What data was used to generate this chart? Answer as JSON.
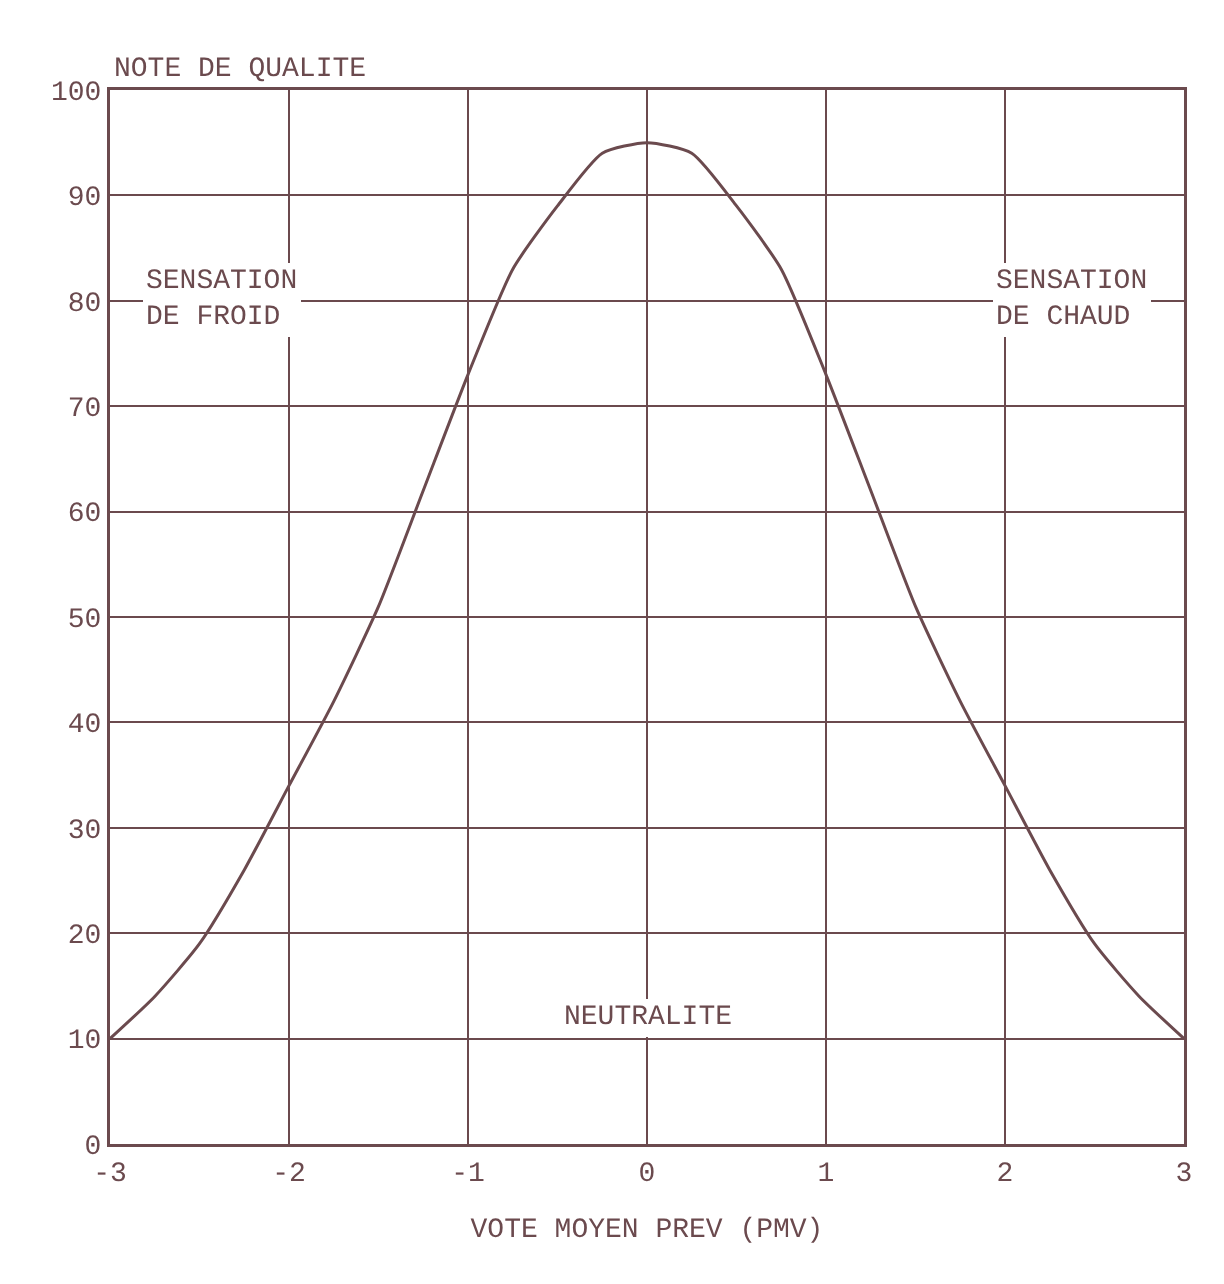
{
  "chart_data": {
    "type": "line",
    "ylabel": "NOTE DE QUALITE",
    "xlabel": "VOTE MOYEN PREV (PMV)",
    "x": [
      -3,
      -2.75,
      -2.5,
      -2.25,
      -2,
      -1.75,
      -1.5,
      -1.25,
      -1,
      -0.75,
      -0.5,
      -0.25,
      0,
      0.25,
      0.5,
      0.75,
      1,
      1.25,
      1.5,
      1.75,
      2,
      2.25,
      2.5,
      2.75,
      3
    ],
    "series": [
      {
        "color": "#6b4a4e",
        "values": [
          10,
          14,
          19,
          26,
          34,
          42,
          51,
          62,
          73,
          83,
          89,
          94,
          95,
          94,
          89,
          83,
          73,
          62,
          51,
          42,
          34,
          26,
          19,
          14,
          10
        ]
      }
    ],
    "xlim": [
      -3,
      3
    ],
    "xticks": [
      -3,
      -2,
      -1,
      0,
      1,
      2,
      3
    ],
    "ylim": [
      0,
      100
    ],
    "yticks": [
      0,
      10,
      20,
      30,
      40,
      50,
      60,
      70,
      80,
      90,
      100
    ],
    "grid": true,
    "legend": false,
    "marker": "none",
    "line_style": "solid",
    "annotations": [
      "SENSATION\nDE FROID",
      "SENSATION\nDE CHAUD",
      "NEUTRALITE"
    ]
  }
}
